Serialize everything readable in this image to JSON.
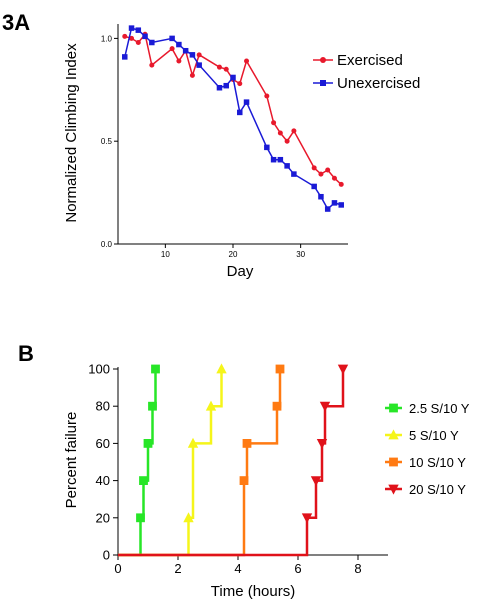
{
  "chart_data": [
    {
      "panel": "3A",
      "type": "line",
      "xlabel": "Day",
      "ylabel": "Normalized Climbing Index",
      "xlim": [
        3,
        37
      ],
      "ylim": [
        0,
        1.07
      ],
      "xticks": [
        10,
        20,
        30
      ],
      "yticks": [
        0.0,
        0.5,
        1.0
      ],
      "ytick_labels": [
        "0.0",
        "0.5",
        "1.0"
      ],
      "grid": false,
      "legend_position": "top-right",
      "series": [
        {
          "name": "Exercised",
          "color": "#e8192c",
          "marker": "circle",
          "x": [
            4,
            5,
            6,
            7,
            8,
            11,
            12,
            13,
            14,
            15,
            18,
            19,
            20,
            21,
            22,
            25,
            26,
            27,
            28,
            29,
            32,
            33,
            34,
            35,
            36
          ],
          "y": [
            1.01,
            1.0,
            0.98,
            1.02,
            0.87,
            0.95,
            0.89,
            0.94,
            0.82,
            0.92,
            0.86,
            0.85,
            0.8,
            0.78,
            0.89,
            0.72,
            0.59,
            0.54,
            0.5,
            0.55,
            0.37,
            0.34,
            0.36,
            0.32,
            0.29
          ]
        },
        {
          "name": "Unexercised",
          "color": "#1a1ad6",
          "marker": "square",
          "x": [
            4,
            5,
            6,
            7,
            8,
            11,
            12,
            13,
            14,
            15,
            18,
            19,
            20,
            21,
            22,
            25,
            26,
            27,
            28,
            29,
            32,
            33,
            34,
            35,
            36
          ],
          "y": [
            0.91,
            1.05,
            1.04,
            1.01,
            0.98,
            1.0,
            0.97,
            0.94,
            0.92,
            0.87,
            0.76,
            0.77,
            0.81,
            0.64,
            0.69,
            0.47,
            0.41,
            0.41,
            0.38,
            0.34,
            0.28,
            0.23,
            0.17,
            0.2,
            0.19
          ]
        }
      ]
    },
    {
      "panel": "B",
      "type": "line",
      "step": true,
      "xlabel": "Time (hours)",
      "ylabel": "Percent failure",
      "xlim": [
        0,
        9
      ],
      "ylim": [
        0,
        100
      ],
      "xticks": [
        0,
        2,
        4,
        6,
        8
      ],
      "yticks": [
        0,
        20,
        40,
        60,
        80,
        100
      ],
      "grid": false,
      "legend_position": "right",
      "series": [
        {
          "name": "2.5 S/10 Y",
          "color": "#27e627",
          "marker": "square",
          "x": [
            0,
            0.75,
            0.85,
            1.0,
            1.15,
            1.25
          ],
          "y": [
            0,
            20,
            40,
            60,
            80,
            100
          ]
        },
        {
          "name": "5 S/10 Y",
          "color": "#f5f51a",
          "marker": "triangle-up",
          "x": [
            0,
            2.35,
            2.5,
            3.1,
            3.45
          ],
          "y": [
            0,
            20,
            60,
            80,
            100
          ]
        },
        {
          "name": "10 S/10 Y",
          "color": "#ff7a12",
          "marker": "square",
          "x": [
            0,
            4.2,
            4.3,
            5.3,
            5.4
          ],
          "y": [
            0,
            40,
            60,
            80,
            100
          ]
        },
        {
          "name": "20 S/10 Y",
          "color": "#e0121a",
          "marker": "triangle-down",
          "x": [
            0,
            6.3,
            6.6,
            6.8,
            6.9,
            7.5
          ],
          "y": [
            0,
            20,
            40,
            60,
            80,
            100
          ]
        }
      ]
    }
  ]
}
